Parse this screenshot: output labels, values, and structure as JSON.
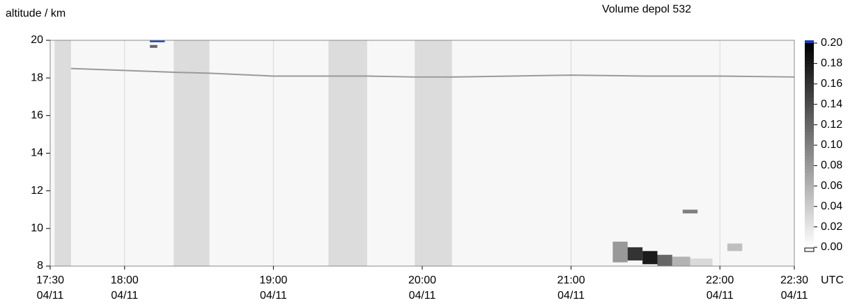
{
  "chart_data": {
    "type": "curtain",
    "title": "Volume depol 532",
    "y_label": "altitude / km",
    "x_unit": "UTC",
    "xlim": [
      17.5,
      22.5
    ],
    "xticks": [
      {
        "value": 17.5,
        "label": "17:30",
        "sublabel": "04/11"
      },
      {
        "value": 18,
        "label": "18:00",
        "sublabel": "04/11"
      },
      {
        "value": 19,
        "label": "19:00",
        "sublabel": "04/11"
      },
      {
        "value": 20,
        "label": "20:00",
        "sublabel": "04/11"
      },
      {
        "value": 21,
        "label": "21:00",
        "sublabel": "04/11"
      },
      {
        "value": 22,
        "label": "22:00",
        "sublabel": "04/11"
      },
      {
        "value": 22.5,
        "label": "22:30",
        "sublabel": "04/11"
      }
    ],
    "ylim": [
      8,
      20
    ],
    "yticks": [
      8,
      10,
      12,
      14,
      16,
      18,
      20
    ],
    "grid": true,
    "clim": [
      0,
      0.2
    ],
    "cticks": [
      {
        "value": 0,
        "label": "0.00"
      },
      {
        "value": 0.02,
        "label": "0.02"
      },
      {
        "value": 0.04,
        "label": "0.04"
      },
      {
        "value": 0.06,
        "label": "0.06"
      },
      {
        "value": 0.08,
        "label": "0.08"
      },
      {
        "value": 0.1,
        "label": "0.10"
      },
      {
        "value": 0.12,
        "label": "0.12"
      },
      {
        "value": 0.14,
        "label": "0.14"
      },
      {
        "value": 0.16,
        "label": "0.16"
      },
      {
        "value": 0.18,
        "label": "0.18"
      },
      {
        "value": 0.2,
        "label": "0.20"
      }
    ],
    "over_color": "#1a3db8",
    "gap_color": "#dcdcdc",
    "gaps": [
      [
        17.53,
        17.64
      ],
      [
        18.33,
        18.57
      ],
      [
        19.37,
        19.63
      ],
      [
        19.95,
        20.2
      ]
    ],
    "layer": {
      "x": [
        17.64,
        18.0,
        18.33,
        18.57,
        19.0,
        19.37,
        19.63,
        19.95,
        20.2,
        20.6,
        21.0,
        21.5,
        22.0,
        22.5
      ],
      "y": [
        18.5,
        18.4,
        18.3,
        18.25,
        18.1,
        18.1,
        18.1,
        18.05,
        18.05,
        18.1,
        18.15,
        18.1,
        18.1,
        18.05
      ],
      "value": 0.08
    },
    "cells": [
      {
        "x0": 18.17,
        "x1": 18.27,
        "y0": 19.9,
        "y1": 20.0,
        "value": 0.22
      },
      {
        "x0": 18.17,
        "x1": 18.22,
        "y0": 19.6,
        "y1": 19.75,
        "value": 0.12
      },
      {
        "x0": 21.75,
        "x1": 21.85,
        "y0": 10.8,
        "y1": 11.0,
        "value": 0.1
      },
      {
        "x0": 21.28,
        "x1": 21.38,
        "y0": 8.2,
        "y1": 9.3,
        "value": 0.08
      },
      {
        "x0": 21.38,
        "x1": 21.48,
        "y0": 8.3,
        "y1": 9.0,
        "value": 0.16
      },
      {
        "x0": 21.48,
        "x1": 21.58,
        "y0": 8.1,
        "y1": 8.8,
        "value": 0.18
      },
      {
        "x0": 21.58,
        "x1": 21.68,
        "y0": 8.0,
        "y1": 8.6,
        "value": 0.12
      },
      {
        "x0": 21.68,
        "x1": 21.8,
        "y0": 8.0,
        "y1": 8.5,
        "value": 0.06
      },
      {
        "x0": 21.8,
        "x1": 21.95,
        "y0": 8.0,
        "y1": 8.4,
        "value": 0.03
      },
      {
        "x0": 22.05,
        "x1": 22.15,
        "y0": 8.8,
        "y1": 9.2,
        "value": 0.05
      }
    ]
  }
}
